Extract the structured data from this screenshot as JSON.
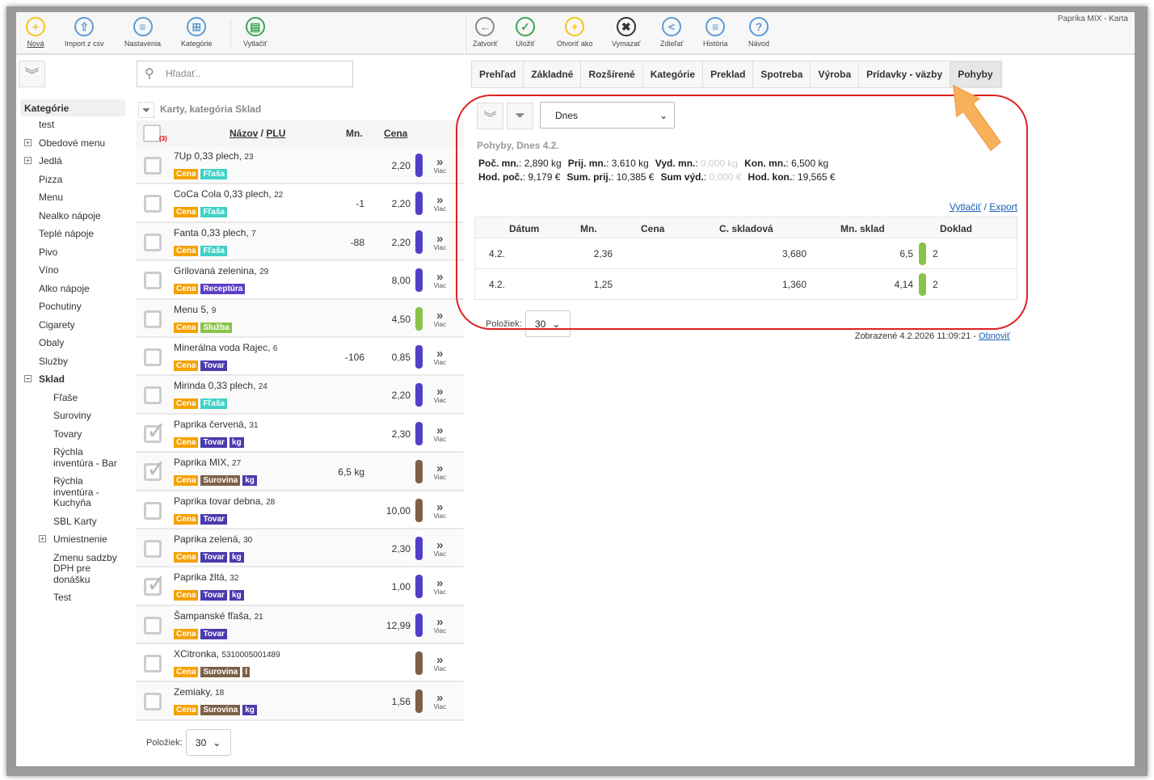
{
  "window_title": "Paprika MIX - Karta",
  "toolbar_left": [
    {
      "label": "Nová",
      "icon": "plus-icon",
      "color": "#f5c518",
      "glyph": "+"
    },
    {
      "label": "Import z csv",
      "icon": "upload-icon",
      "color": "#5b9bd5",
      "glyph": "⇧"
    },
    {
      "label": "Nastavenia",
      "icon": "list-icon",
      "color": "#5b9bd5",
      "glyph": "≡"
    },
    {
      "label": "Kategórie",
      "icon": "categories-icon",
      "color": "#5b9bd5",
      "glyph": "⊞"
    },
    {
      "label": "Vytlačiť",
      "icon": "print-icon",
      "color": "#3aa655",
      "glyph": "▤"
    }
  ],
  "toolbar_right": [
    {
      "label": "Zatvoriť",
      "icon": "back-icon",
      "color": "#888888",
      "glyph": "←"
    },
    {
      "label": "Uložiť",
      "icon": "check-icon",
      "color": "#3aa655",
      "glyph": "✓"
    },
    {
      "label": "Otvoriť ako",
      "icon": "plus-icon",
      "color": "#f5c518",
      "glyph": "+"
    },
    {
      "label": "Vymazať",
      "icon": "delete-icon",
      "color": "#333333",
      "glyph": "✖"
    },
    {
      "label": "Zdieľať",
      "icon": "share-icon",
      "color": "#5b9bd5",
      "glyph": "<"
    },
    {
      "label": "História",
      "icon": "history-icon",
      "color": "#5b9bd5",
      "glyph": "≡"
    },
    {
      "label": "Návod",
      "icon": "help-icon",
      "color": "#5b9bd5",
      "glyph": "?"
    }
  ],
  "search": {
    "placeholder": "Hľadať.."
  },
  "sidebar": {
    "header": "Kategórie",
    "items": [
      {
        "label": "test",
        "level": 0
      },
      {
        "label": "Obedové menu",
        "level": 0,
        "expand": "+"
      },
      {
        "label": "Jedlá",
        "level": 0,
        "expand": "+"
      },
      {
        "label": "Pizza",
        "level": 0
      },
      {
        "label": "Menu",
        "level": 0
      },
      {
        "label": "Nealko nápoje",
        "level": 0
      },
      {
        "label": "Teplé nápoje",
        "level": 0
      },
      {
        "label": "Pivo",
        "level": 0
      },
      {
        "label": "Víno",
        "level": 0
      },
      {
        "label": "Alko nápoje",
        "level": 0
      },
      {
        "label": "Pochutiny",
        "level": 0
      },
      {
        "label": "Cigarety",
        "level": 0
      },
      {
        "label": "Obaly",
        "level": 0
      },
      {
        "label": "Služby",
        "level": 0
      },
      {
        "label": "Sklad",
        "level": 0,
        "expand": "−",
        "bold": true
      },
      {
        "label": "Fľaše",
        "level": 1
      },
      {
        "label": "Suroviny",
        "level": 1
      },
      {
        "label": "Tovary",
        "level": 1
      },
      {
        "label": "Rýchla inventúra - Bar",
        "level": 1
      },
      {
        "label": "Rýchla inventúra - Kuchyňa",
        "level": 1
      },
      {
        "label": "SBL Karty",
        "level": 1
      },
      {
        "label": "Umiestnenie",
        "level": 1,
        "expand": "+"
      },
      {
        "label": "Zmenu sadzby DPH pre donášku",
        "level": 1
      },
      {
        "label": "Test",
        "level": 1
      }
    ]
  },
  "list": {
    "title": "Karty, kategória Sklad",
    "selected_count": "(3)",
    "col_name": "Názov",
    "col_sep": " / ",
    "col_plu": "PLU",
    "col_mn": "Mn.",
    "col_cena": "Cena",
    "more_label": "Viac",
    "tag_colors": {
      "Cena": "#f5a100",
      "Fľaša": "#3fd1c4",
      "Receptúra": "#5b3fc4",
      "Služba": "#8bc34a",
      "Tovar": "#4a3aad",
      "kg": "#4a3aad",
      "Surovina": "#7d6048",
      "l": "#7d6048"
    },
    "bar_colors": {
      "purple": "#5040c8",
      "green": "#8bc34a",
      "brown": "#7d6048"
    },
    "items": [
      {
        "name": "7Up 0,33 plech",
        "plu": "23",
        "tags": [
          "Cena",
          "Fľaša"
        ],
        "mn": "",
        "cena": "2,20",
        "bar": "purple",
        "checked": false
      },
      {
        "name": "CoCa Cola 0,33 plech",
        "plu": "22",
        "tags": [
          "Cena",
          "Fľaša"
        ],
        "mn": "-1",
        "cena": "2,20",
        "bar": "purple",
        "checked": false
      },
      {
        "name": "Fanta 0,33 plech",
        "plu": "7",
        "tags": [
          "Cena",
          "Fľaša"
        ],
        "mn": "-88",
        "cena": "2,20",
        "bar": "purple",
        "checked": false
      },
      {
        "name": "Grilovaná zelenina",
        "plu": "29",
        "tags": [
          "Cena",
          "Receptúra"
        ],
        "mn": "",
        "cena": "8,00",
        "bar": "purple",
        "checked": false
      },
      {
        "name": "Menu 5",
        "plu": "9",
        "tags": [
          "Cena",
          "Služba"
        ],
        "mn": "",
        "cena": "4,50",
        "bar": "green",
        "checked": false
      },
      {
        "name": "Minerálna voda Rajec",
        "plu": "6",
        "tags": [
          "Cena",
          "Tovar"
        ],
        "mn": "-106",
        "cena": "0,85",
        "bar": "purple",
        "checked": false
      },
      {
        "name": "Mirinda 0,33 plech",
        "plu": "24",
        "tags": [
          "Cena",
          "Fľaša"
        ],
        "mn": "",
        "cena": "2,20",
        "bar": "purple",
        "checked": false
      },
      {
        "name": "Paprika červená",
        "plu": "31",
        "tags": [
          "Cena",
          "Tovar",
          "kg"
        ],
        "mn": "",
        "cena": "2,30",
        "bar": "purple",
        "checked": true
      },
      {
        "name": "Paprika MIX",
        "plu": "27",
        "tags": [
          "Cena",
          "Surovina",
          "kg"
        ],
        "mn": "6,5 kg",
        "cena": "",
        "bar": "brown",
        "checked": true
      },
      {
        "name": "Paprika tovar debna",
        "plu": "28",
        "tags": [
          "Cena",
          "Tovar"
        ],
        "mn": "",
        "cena": "10,00",
        "bar": "brown",
        "checked": false
      },
      {
        "name": "Paprika zelená",
        "plu": "30",
        "tags": [
          "Cena",
          "Tovar",
          "kg"
        ],
        "mn": "",
        "cena": "2,30",
        "bar": "purple",
        "checked": false
      },
      {
        "name": "Paprika žltá",
        "plu": "32",
        "tags": [
          "Cena",
          "Tovar",
          "kg"
        ],
        "mn": "",
        "cena": "1,00",
        "bar": "purple",
        "checked": true
      },
      {
        "name": "Šampanské fľaša",
        "plu": "21",
        "tags": [
          "Cena",
          "Tovar"
        ],
        "mn": "",
        "cena": "12,99",
        "bar": "purple",
        "checked": false
      },
      {
        "name": "XCitronka",
        "plu": "5310005001489",
        "tags": [
          "Cena",
          "Surovina",
          "l"
        ],
        "mn": "",
        "cena": "",
        "bar": "brown",
        "checked": false
      },
      {
        "name": "Zemiaky",
        "plu": "18",
        "tags": [
          "Cena",
          "Surovina",
          "kg"
        ],
        "mn": "",
        "cena": "1,56",
        "bar": "brown",
        "checked": false
      }
    ],
    "pager_label": "Položiek:",
    "pager_value": "30"
  },
  "tabs": [
    {
      "label": "Prehľad"
    },
    {
      "label": "Základné"
    },
    {
      "label": "Rozšírené"
    },
    {
      "label": "Kategórie"
    },
    {
      "label": "Preklad"
    },
    {
      "label": "Spotreba"
    },
    {
      "label": "Výroba"
    },
    {
      "label": "Prídavky - väzby"
    },
    {
      "label": "Pohyby",
      "active": true
    }
  ],
  "detail": {
    "period": "Dnes",
    "title": "Pohyby, Dnes 4.2.",
    "sums_row1": [
      {
        "k": "Poč. mn.",
        "v": "2,890 kg"
      },
      {
        "k": "Prij. mn.",
        "v": "3,610 kg"
      },
      {
        "k": "Vyd. mn.",
        "v": "0,000 kg",
        "muted": true
      },
      {
        "k": "Kon. mn.",
        "v": "6,500 kg"
      }
    ],
    "sums_row2": [
      {
        "k": "Hod. poč.",
        "v": "9,179 €"
      },
      {
        "k": "Sum. prij.",
        "v": "10,385 €"
      },
      {
        "k": "Sum výd.",
        "v": "0,000 €",
        "muted": true
      },
      {
        "k": "Hod. kon.",
        "v": "19,565 €"
      }
    ],
    "print_link": "Vytlačiť",
    "sep": " / ",
    "export_link": "Export",
    "columns": [
      "Dátum",
      "Mn.",
      "Cena",
      "C. skladová",
      "Mn. sklad",
      "Doklad"
    ],
    "rows": [
      {
        "datum": "4.2.",
        "mn": "2,36",
        "cena": "",
        "c_skladova": "3,680",
        "mn_sklad": "6,5",
        "doklad": "2"
      },
      {
        "datum": "4.2.",
        "mn": "1,25",
        "cena": "",
        "c_skladova": "1,360",
        "mn_sklad": "4,14",
        "doklad": "2"
      }
    ],
    "pager_label": "Položiek:",
    "pager_value": "30",
    "footer_text": "Zobrazené 4.2.2026 11:09:21 - ",
    "refresh_link": "Obnoviť"
  },
  "annotation_color": "#e02020",
  "arrow_color": "#f7b15a"
}
